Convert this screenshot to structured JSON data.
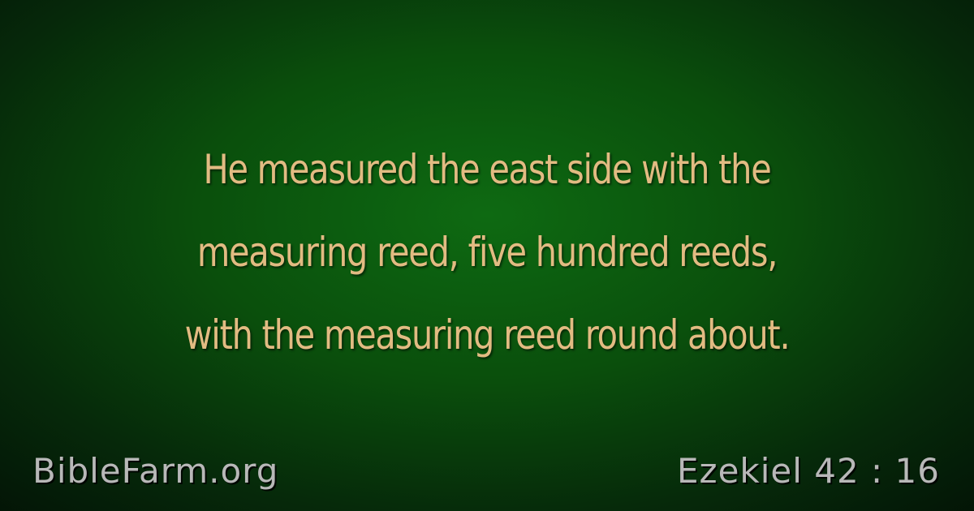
{
  "verse": {
    "lines": [
      "He measured the east side with the",
      "measuring reed, five hundred reeds,",
      "with the measuring reed round about."
    ]
  },
  "footer": {
    "site": "BibleFarm.org",
    "reference": "Ezekiel 42 : 16"
  },
  "colors": {
    "verse_text": "#e2bb82",
    "footer_text": "#b8b8b8",
    "background_center": "#0e6a12",
    "background_edge": "#031406"
  }
}
